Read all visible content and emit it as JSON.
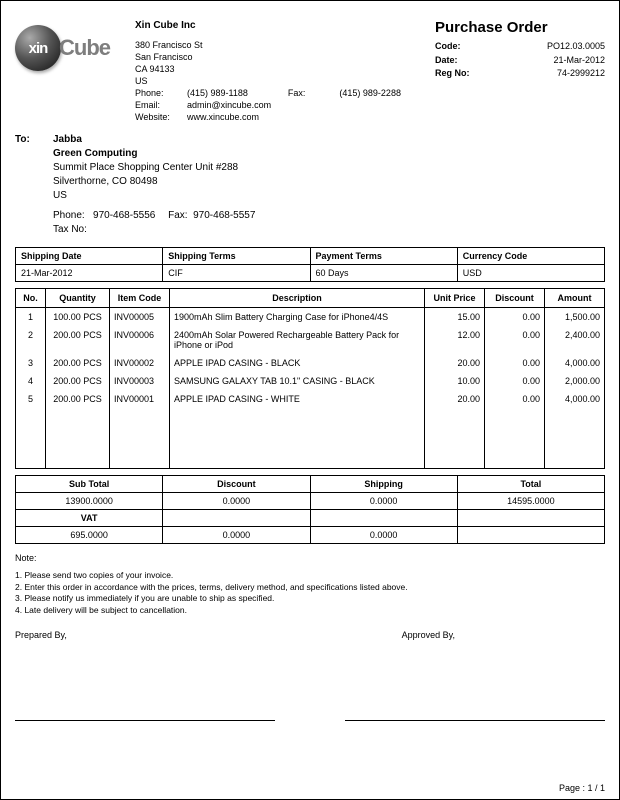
{
  "company": {
    "name": "Xin Cube Inc",
    "addr1": "380 Francisco St",
    "city": "San Francisco",
    "zip": "CA 94133",
    "country": "US",
    "phone_label": "Phone:",
    "phone": "(415) 989-1188",
    "fax_label": "Fax:",
    "fax": "(415) 989-2288",
    "email_label": "Email:",
    "email": "admin@xincube.com",
    "website_label": "Website:",
    "website": "www.xincube.com"
  },
  "logo": {
    "ball": "xin",
    "rest": "Cube"
  },
  "po": {
    "title": "Purchase Order",
    "code_label": "Code:",
    "code": "PO12.03.0005",
    "date_label": "Date:",
    "date": "21-Mar-2012",
    "regno_label": "Reg No:",
    "regno": "74-2999212"
  },
  "to": {
    "label": "To:",
    "recipient": "Jabba",
    "company": "Green Computing",
    "addr1": "Summit Place Shopping Center  Unit #288",
    "addr2": "Silverthorne, CO 80498",
    "country": "US",
    "phone_label": "Phone:",
    "phone": "970-468-5556",
    "fax_label": "Fax:",
    "fax": "970-468-5557",
    "taxno_label": "Tax No:"
  },
  "terms": {
    "headers": {
      "shipdate": "Shipping Date",
      "shipterms": "Shipping Terms",
      "payterms": "Payment Terms",
      "currency": "Currency Code"
    },
    "values": {
      "shipdate": "21-Mar-2012",
      "shipterms": "CIF",
      "payterms": "60 Days",
      "currency": "USD"
    }
  },
  "items": {
    "headers": {
      "no": "No.",
      "qty": "Quantity",
      "code": "Item Code",
      "desc": "Description",
      "price": "Unit Price",
      "disc": "Discount",
      "amt": "Amount"
    },
    "rows": [
      {
        "no": "1",
        "qty": "100.00 PCS",
        "code": "INV00005",
        "desc": "1900mAh Slim Battery Charging Case for iPhone4/4S",
        "price": "15.00",
        "disc": "0.00",
        "amt": "1,500.00"
      },
      {
        "no": "2",
        "qty": "200.00 PCS",
        "code": "INV00006",
        "desc": "2400mAh Solar Powered Rechargeable Battery Pack for iPhone or iPod",
        "price": "12.00",
        "disc": "0.00",
        "amt": "2,400.00"
      },
      {
        "no": "3",
        "qty": "200.00 PCS",
        "code": "INV00002",
        "desc": "APPLE IPAD CASING - BLACK",
        "price": "20.00",
        "disc": "0.00",
        "amt": "4,000.00"
      },
      {
        "no": "4",
        "qty": "200.00 PCS",
        "code": "INV00003",
        "desc": "SAMSUNG GALAXY TAB 10.1\" CASING - BLACK",
        "price": "10.00",
        "disc": "0.00",
        "amt": "2,000.00"
      },
      {
        "no": "5",
        "qty": "200.00 PCS",
        "code": "INV00001",
        "desc": "APPLE IPAD CASING - WHITE",
        "price": "20.00",
        "disc": "0.00",
        "amt": "4,000.00"
      }
    ]
  },
  "summary": {
    "headers": {
      "sub": "Sub Total",
      "disc": "Discount",
      "ship": "Shipping",
      "total": "Total"
    },
    "row1": {
      "sub": "13900.0000",
      "disc": "0.0000",
      "ship": "0.0000",
      "total": "14595.0000"
    },
    "vat_label": "VAT",
    "row2": {
      "vat": "695.0000",
      "disc": "0.0000",
      "ship": "0.0000",
      "total": ""
    }
  },
  "notes": {
    "title": "Note:",
    "lines": [
      "1. Please send two copies of your invoice.",
      "2. Enter this order in accordance with the prices, terms, delivery method, and specifications listed above.",
      "3. Please notify us immediately if you are unable to ship as specified.",
      "4. Late delivery will be subject to cancellation."
    ]
  },
  "sign": {
    "prepared": "Prepared By,",
    "approved": "Approved By,"
  },
  "page": "Page : 1 / 1"
}
